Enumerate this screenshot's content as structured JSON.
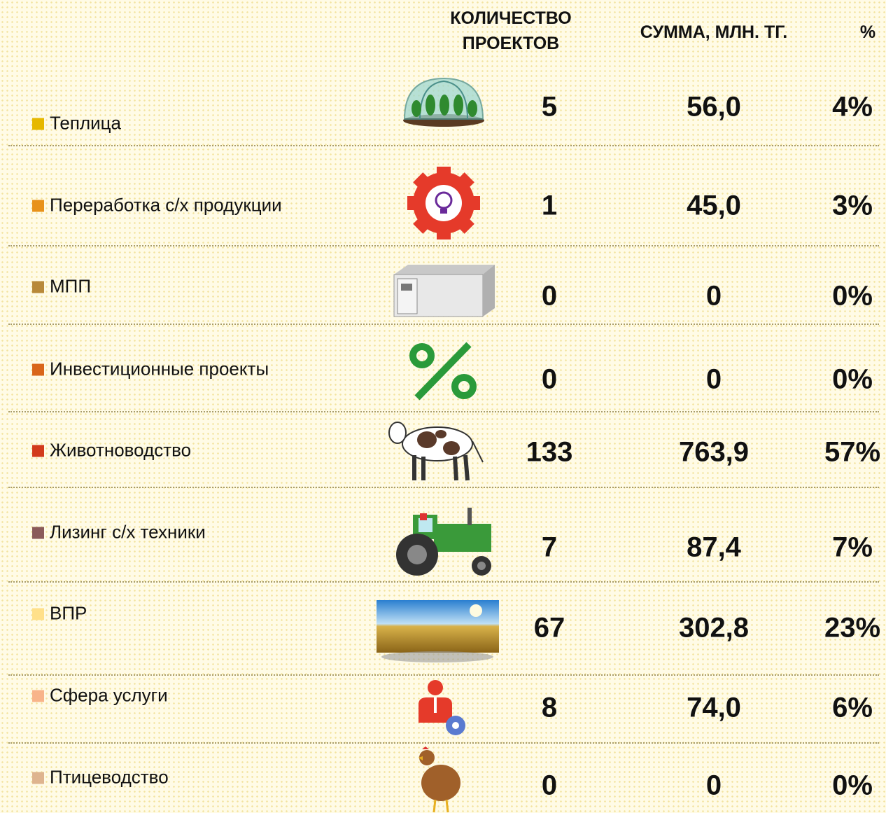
{
  "table": {
    "header": [
      "КОЛИЧЕСТВО ПРОЕКТОВ",
      "СУММА, МЛН. ТГ.",
      "%"
    ],
    "rows": [
      {
        "label": "Теплица",
        "color": "#e6b800",
        "count": "5",
        "sum": "56,0",
        "percent": "4%"
      },
      {
        "label": "Переработка с/х продукции",
        "color": "#e8921a",
        "count": "1",
        "sum": "45,0",
        "percent": "3%"
      },
      {
        "label": "МПП",
        "color": "#b8893a",
        "count": "0",
        "sum": "0",
        "percent": "0%"
      },
      {
        "label": "Инвестиционные проекты",
        "color": "#d9661a",
        "count": "0",
        "sum": "0",
        "percent": "0%"
      },
      {
        "label": "Животноводство",
        "color": "#d23a1c",
        "count": "133",
        "sum": "763,9",
        "percent": "57%"
      },
      {
        "label": "Лизинг с/х техники",
        "color": "#8a5a5a",
        "count": "7",
        "sum": "87,4",
        "percent": "7%"
      },
      {
        "label": "ВПР",
        "color": "#ffe08a",
        "count": "67",
        "sum": "302,8",
        "percent": "23%"
      },
      {
        "label": "Сфера услуги",
        "color": "#f8b48a",
        "count": "8",
        "sum": "74,0",
        "percent": "6%"
      },
      {
        "label": "Птицеводство",
        "color": "#deb48f",
        "count": "0",
        "sum": "0",
        "percent": "0%"
      }
    ]
  }
}
